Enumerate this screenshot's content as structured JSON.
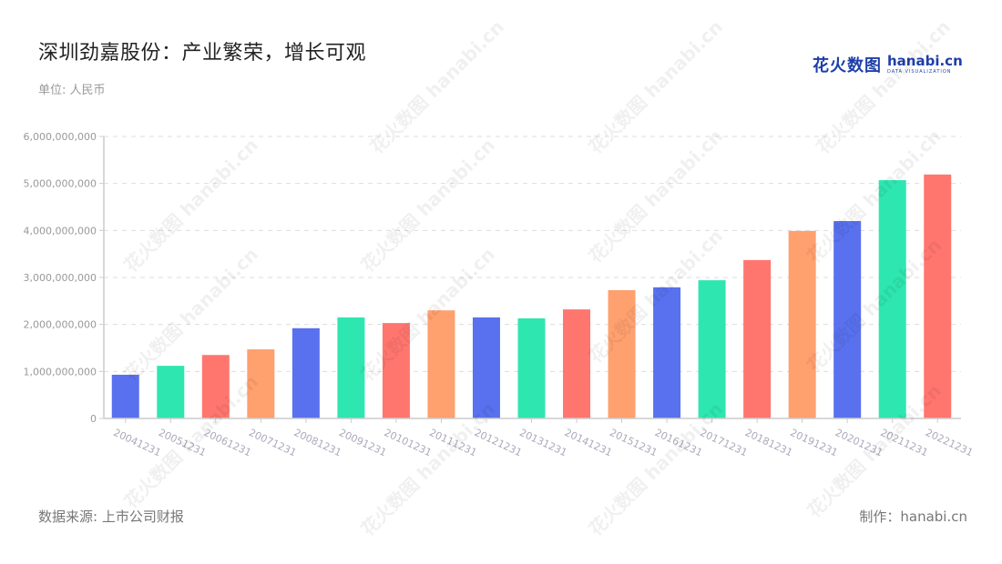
{
  "header": {
    "title": "深圳劲嘉股份：产业繁荣，增长可观",
    "unit": "单位: 人民币"
  },
  "logo": {
    "cn": "花火数图",
    "en": "hanabi.cn",
    "tagline": "DATA VISUALIZATION"
  },
  "footer": {
    "source": "数据来源: 上市公司财报",
    "credit": "制作：hanabi.cn"
  },
  "watermark": "花火数图 hanabi.cn",
  "colors": {
    "palette": [
      "#5971ee",
      "#2ee6b0",
      "#ff766f",
      "#ffa06f"
    ],
    "grid": "#dddddd",
    "axis": "#cccccc"
  },
  "chart_data": {
    "type": "bar",
    "title": "深圳劲嘉股份：产业繁荣，增长可观",
    "subtitle": "单位: 人民币",
    "xlabel": "",
    "ylabel": "",
    "ylim": [
      0,
      6000000000
    ],
    "yticks": [
      0,
      1000000000,
      2000000000,
      3000000000,
      4000000000,
      5000000000,
      6000000000
    ],
    "ytick_labels": [
      "0",
      "1,000,000,000",
      "2,000,000,000",
      "3,000,000,000",
      "4,000,000,000",
      "5,000,000,000",
      "6,000,000,000"
    ],
    "grid": true,
    "legend": "none",
    "categories": [
      "20041231",
      "20051231",
      "20061231",
      "20071231",
      "20081231",
      "20091231",
      "20101231",
      "20111231",
      "20121231",
      "20131231",
      "20141231",
      "20151231",
      "20161231",
      "20171231",
      "20181231",
      "20191231",
      "20201231",
      "20211231",
      "20221231"
    ],
    "values": [
      930000000,
      1120000000,
      1350000000,
      1470000000,
      1920000000,
      2150000000,
      2030000000,
      2300000000,
      2150000000,
      2130000000,
      2320000000,
      2730000000,
      2790000000,
      2940000000,
      3370000000,
      3990000000,
      4200000000,
      5070000000,
      5190000000
    ],
    "bar_colors": [
      "#5971ee",
      "#2ee6b0",
      "#ff766f",
      "#ffa06f",
      "#5971ee",
      "#2ee6b0",
      "#ff766f",
      "#ffa06f",
      "#5971ee",
      "#2ee6b0",
      "#ff766f",
      "#ffa06f",
      "#5971ee",
      "#2ee6b0",
      "#ff766f",
      "#ffa06f",
      "#5971ee",
      "#2ee6b0",
      "#ff766f"
    ]
  }
}
